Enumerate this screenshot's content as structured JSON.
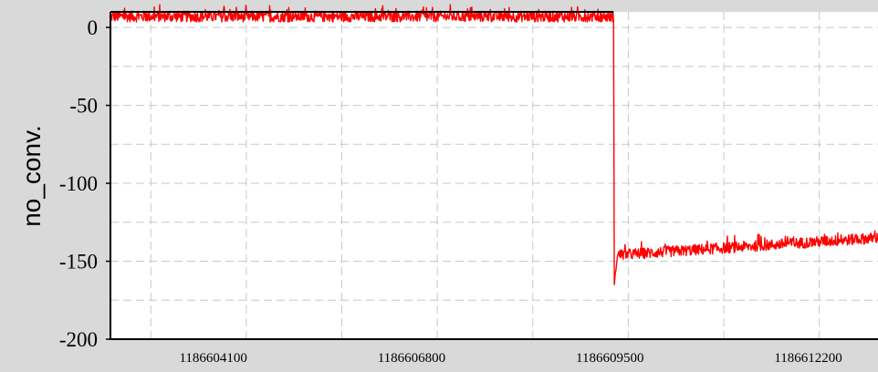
{
  "chart_data": {
    "type": "line",
    "title": "",
    "xlabel": "",
    "ylabel": "no_conv.",
    "xlim": [
      1186602700,
      1186613150
    ],
    "ylim": [
      -200,
      10
    ],
    "x_ticks": [
      1186604100,
      1186606800,
      1186609500,
      1186612200
    ],
    "y_ticks": [
      0,
      -50,
      -100,
      -150,
      -200
    ],
    "x_grid": [
      1186603250,
      1186604550,
      1186605850,
      1186607150,
      1186608450,
      1186609750,
      1186611050,
      1186612350
    ],
    "y_grid": [
      0,
      -25,
      -50,
      -75,
      -100,
      -125,
      -150,
      -175
    ],
    "grid": true,
    "series": [
      {
        "color": "#ff0000",
        "x": [
          1186602700,
          1186609550,
          1186609560,
          1186609600,
          1186613150
        ],
        "y": [
          7,
          7,
          -165,
          -146,
          -135
        ],
        "noise_amplitude": [
          3.5,
          3.5,
          0,
          3.5,
          3.5
        ]
      }
    ],
    "colors": {
      "background": "#d9d9d9",
      "plot_area": "#ffffff",
      "grid": "#c8c8c8",
      "axis": "#000000"
    }
  }
}
